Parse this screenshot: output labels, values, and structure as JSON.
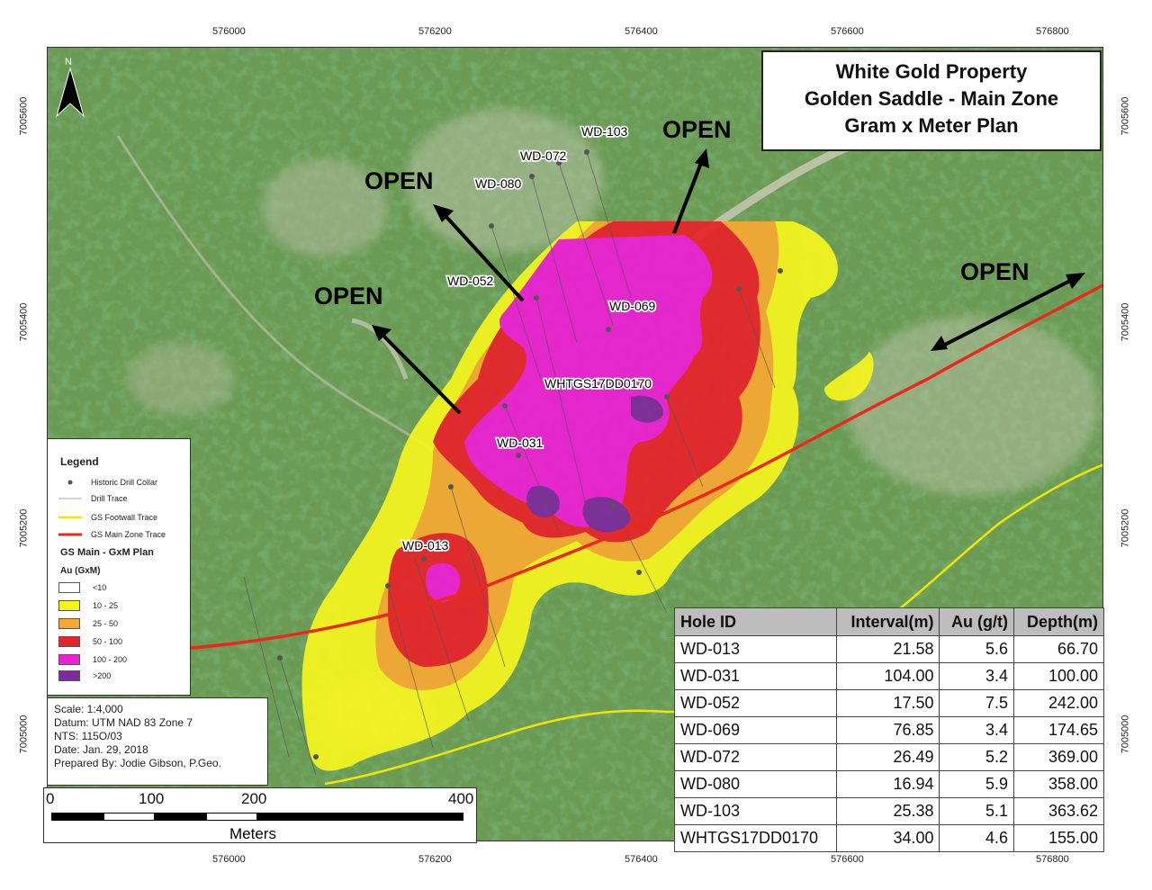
{
  "title": {
    "line1": "White Gold Property",
    "line2": "Golden Saddle - Main Zone",
    "line3": "Gram x Meter Plan"
  },
  "north_arrow": {
    "label": "N"
  },
  "grid_labels": {
    "easting": [
      "576000",
      "576200",
      "576400",
      "576600",
      "576800"
    ],
    "northing": [
      "7005600",
      "7005400",
      "7005200",
      "7005000"
    ]
  },
  "open_labels": [
    "OPEN",
    "OPEN",
    "OPEN",
    "OPEN"
  ],
  "hole_labels": [
    "WD-103",
    "WD-072",
    "WD-080",
    "WD-052",
    "WD-069",
    "WHTGS17DD0170",
    "WD-031",
    "WD-013"
  ],
  "legend": {
    "title": "Legend",
    "items": [
      {
        "label": "Historic Drill Collar",
        "symbol": "dot",
        "color": "#555555"
      },
      {
        "label": "Drill Trace",
        "symbol": "line",
        "color": "#aaaaaa"
      },
      {
        "label": "GS Footwall Trace",
        "symbol": "line",
        "color": "#f2e600"
      },
      {
        "label": "GS Main Zone Trace",
        "symbol": "line",
        "color": "#e8291c"
      }
    ],
    "subtitle": "GS Main - GxM Plan",
    "unit": "Au (GxM)",
    "classes": [
      {
        "label": "<10",
        "color": "#ffffff"
      },
      {
        "label": "10 - 25",
        "color": "#f5f51e"
      },
      {
        "label": "25 - 50",
        "color": "#f7a833"
      },
      {
        "label": "50 - 100",
        "color": "#e8232a"
      },
      {
        "label": "100 - 200",
        "color": "#ee1fd4"
      },
      {
        "label": ">200",
        "color": "#7d2a9c"
      }
    ]
  },
  "info": {
    "scale": "Scale: 1:4,000",
    "datum": "Datum: UTM NAD 83 Zone 7",
    "nts": "NTS: 115O/03",
    "date": "Date: Jan. 29, 2018",
    "prepared": "Prepared By: Jodie Gibson, P.Geo."
  },
  "scale_bar": {
    "ticks": [
      "0",
      "100",
      "200",
      "400"
    ],
    "unit": "Meters"
  },
  "table": {
    "headers": [
      "Hole ID",
      "Interval(m)",
      "Au (g/t)",
      "Depth(m)"
    ],
    "rows": [
      [
        "WD-013",
        "21.58",
        "5.6",
        "66.70"
      ],
      [
        "WD-031",
        "104.00",
        "3.4",
        "100.00"
      ],
      [
        "WD-052",
        "17.50",
        "7.5",
        "242.00"
      ],
      [
        "WD-069",
        "76.85",
        "3.4",
        "174.65"
      ],
      [
        "WD-072",
        "26.49",
        "5.2",
        "369.00"
      ],
      [
        "WD-080",
        "16.94",
        "5.9",
        "358.00"
      ],
      [
        "WD-103",
        "25.38",
        "5.1",
        "363.62"
      ],
      [
        "WHTGS17DD0170",
        "34.00",
        "4.6",
        "155.00"
      ]
    ]
  }
}
